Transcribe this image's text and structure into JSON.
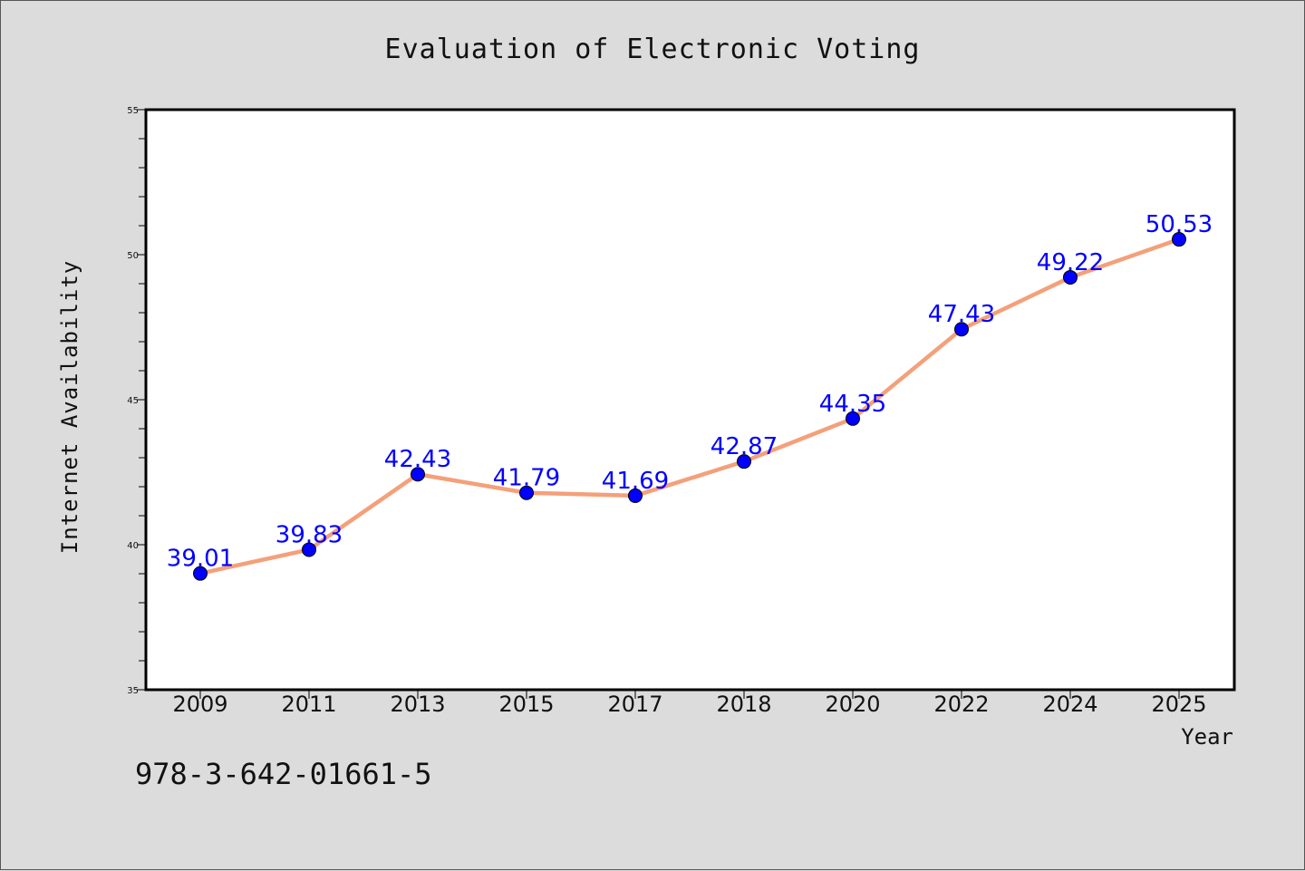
{
  "chart_data": {
    "type": "line",
    "title": "Evaluation of Electronic Voting",
    "xlabel": "Year",
    "ylabel": "Internet Availability",
    "categories": [
      "2009",
      "2011",
      "2013",
      "2015",
      "2017",
      "2018",
      "2020",
      "2022",
      "2024",
      "2025"
    ],
    "series": [
      {
        "values": [
          39.01,
          39.83,
          42.43,
          41.79,
          41.69,
          42.87,
          44.35,
          47.43,
          49.22,
          50.53
        ],
        "line_color": "#f4a07a",
        "marker_color": "#0000ff"
      }
    ],
    "data_labels": [
      "39.01",
      "39.83",
      "42.43",
      "41.79",
      "41.69",
      "42.87",
      "44.35",
      "47.43",
      "49.22",
      "50.53"
    ],
    "ylim": [
      35,
      55
    ],
    "yticks": [
      "35",
      "40",
      "45",
      "50",
      "55"
    ],
    "grid": false,
    "legend": "none",
    "label_color": "#0000ff"
  },
  "footer": {
    "text": "978-3-642-01661-5"
  }
}
